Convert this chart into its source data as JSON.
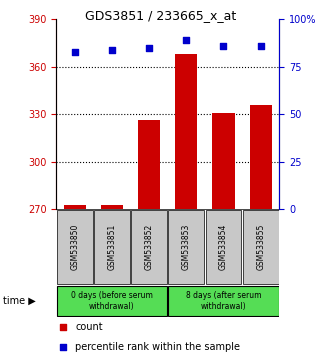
{
  "title": "GDS3851 / 233665_x_at",
  "categories": [
    "GSM533850",
    "GSM533851",
    "GSM533852",
    "GSM533853",
    "GSM533854",
    "GSM533855"
  ],
  "bar_values": [
    272.5,
    272.5,
    326,
    368,
    331,
    336
  ],
  "percentile_values": [
    83,
    84,
    85,
    89,
    86,
    86
  ],
  "bar_color": "#cc0000",
  "percentile_color": "#0000cc",
  "ylim_left": [
    270,
    390
  ],
  "ylim_right": [
    0,
    100
  ],
  "yticks_left": [
    270,
    300,
    330,
    360,
    390
  ],
  "yticks_right": [
    0,
    25,
    50,
    75,
    100
  ],
  "ytick_labels_right": [
    "0",
    "25",
    "50",
    "75",
    "100%"
  ],
  "grid_values": [
    300,
    330,
    360
  ],
  "group1_label": "0 days (before serum\nwithdrawal)",
  "group2_label": "8 days (after serum\nwithdrawal)",
  "time_label": "time",
  "legend_count": "count",
  "legend_percentile": "percentile rank within the sample",
  "group_bg_grey": "#c8c8c8",
  "group_bg_green": "#55dd55",
  "left_axis_color": "#cc0000",
  "right_axis_color": "#0000cc",
  "title_fontsize": 9,
  "tick_fontsize": 7,
  "label_fontsize": 6,
  "legend_fontsize": 7
}
